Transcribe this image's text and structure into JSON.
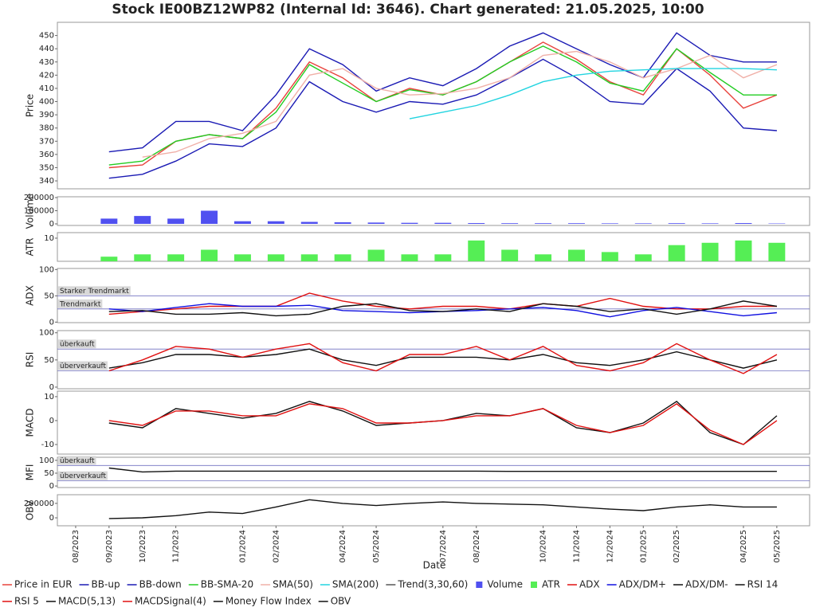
{
  "chart_data": [
    {
      "type": "line",
      "title": "Stock IE00BZ12WP82 (Internal Id: 3646). Chart generated: 21.05.2025, 10:00",
      "ylabel": "Price",
      "ylim": [
        334,
        460
      ],
      "yticks": [
        340,
        350,
        360,
        370,
        380,
        390,
        400,
        410,
        420,
        430,
        440,
        450
      ],
      "series": [
        {
          "name": "Price in EUR",
          "color": "#e8423c",
          "values": [
            null,
            350,
            352,
            370,
            375,
            372,
            395,
            430,
            418,
            400,
            410,
            405,
            415,
            430,
            445,
            432,
            415,
            405,
            440,
            420,
            395,
            405
          ]
        },
        {
          "name": "BB-up",
          "color": "#1a1ab4",
          "values": [
            null,
            362,
            365,
            385,
            385,
            378,
            405,
            440,
            428,
            408,
            418,
            412,
            425,
            442,
            452,
            440,
            428,
            418,
            452,
            435,
            430,
            430
          ]
        },
        {
          "name": "BB-down",
          "color": "#1a1ab4",
          "values": [
            null,
            342,
            345,
            355,
            368,
            366,
            380,
            415,
            400,
            392,
            400,
            398,
            405,
            418,
            432,
            418,
            400,
            398,
            425,
            408,
            380,
            378
          ]
        },
        {
          "name": "BB-SMA-20",
          "color": "#22cc22",
          "values": [
            null,
            352,
            355,
            370,
            375,
            372,
            392,
            428,
            414,
            400,
            409,
            405,
            415,
            430,
            442,
            430,
            414,
            408,
            440,
            422,
            405,
            405
          ]
        },
        {
          "name": "SMA(50)",
          "color": "#f0b0a8",
          "values": [
            null,
            null,
            358,
            362,
            372,
            376,
            385,
            420,
            425,
            410,
            405,
            406,
            410,
            418,
            435,
            438,
            430,
            418,
            425,
            435,
            418,
            428
          ]
        },
        {
          "name": "SMA(200)",
          "color": "#22d4e0",
          "values": [
            null,
            null,
            null,
            null,
            null,
            null,
            null,
            null,
            null,
            null,
            387,
            392,
            397,
            405,
            415,
            420,
            423,
            424,
            425,
            425,
            425,
            424
          ]
        },
        {
          "name": "Trend(3,30,60)",
          "color": "#555555",
          "values": [
            null,
            null,
            null,
            null,
            null,
            null,
            null,
            null,
            null,
            null,
            null,
            null,
            null,
            null,
            null,
            null,
            null,
            null,
            null,
            null,
            null,
            null
          ]
        }
      ]
    },
    {
      "type": "bar",
      "ylabel": "Volume",
      "ylim": [
        -12000,
        206000
      ],
      "yticks": [
        0,
        100000,
        200000
      ],
      "series": [
        {
          "name": "Volume",
          "color": "#5050f0",
          "values": [
            null,
            40000,
            60000,
            40000,
            100000,
            20000,
            20000,
            15000,
            12000,
            10000,
            8000,
            8000,
            6000,
            5000,
            5000,
            5000,
            4000,
            4000,
            5000,
            4000,
            6000,
            3000
          ]
        }
      ]
    },
    {
      "type": "bar",
      "ylabel": "ATR",
      "ylim": [
        0,
        12.4
      ],
      "yticks": [
        10
      ],
      "series": [
        {
          "name": "ATR",
          "color": "#55ee55",
          "values": [
            null,
            2,
            3,
            3,
            5,
            3,
            3,
            3,
            3,
            5,
            3,
            3,
            9,
            5,
            3,
            5,
            4,
            3,
            7,
            8,
            9,
            8
          ]
        }
      ]
    },
    {
      "type": "line",
      "ylabel": "ADX",
      "ylim": [
        -1,
        102
      ],
      "yticks": [
        0,
        50,
        100
      ],
      "annotations": [
        {
          "text": "Starker Trendmarkt",
          "value": 50
        },
        {
          "text": "Trendmarkt",
          "value": 25
        }
      ],
      "series": [
        {
          "name": "ADX",
          "color": "#e01010",
          "values": [
            null,
            15,
            20,
            25,
            30,
            30,
            30,
            55,
            40,
            30,
            25,
            30,
            30,
            25,
            35,
            30,
            45,
            30,
            25,
            25,
            30,
            30
          ]
        },
        {
          "name": "ADX/DM+",
          "color": "#1010e0",
          "values": [
            null,
            25,
            20,
            28,
            35,
            30,
            30,
            32,
            22,
            20,
            18,
            20,
            22,
            25,
            28,
            22,
            10,
            22,
            28,
            20,
            12,
            18
          ]
        },
        {
          "name": "ADX/DM-",
          "color": "#111111",
          "values": [
            null,
            20,
            22,
            15,
            15,
            18,
            12,
            15,
            30,
            35,
            22,
            20,
            25,
            20,
            35,
            30,
            20,
            25,
            15,
            25,
            40,
            30
          ]
        }
      ]
    },
    {
      "type": "line",
      "ylabel": "RSI",
      "ylim": [
        -3,
        104
      ],
      "yticks": [
        0,
        50,
        100
      ],
      "annotations": [
        {
          "text": "überkauft",
          "value": 70
        },
        {
          "text": "überverkauft",
          "value": 30
        }
      ],
      "series": [
        {
          "name": "RSI 14",
          "color": "#111111",
          "values": [
            null,
            35,
            45,
            60,
            60,
            55,
            60,
            70,
            50,
            40,
            55,
            55,
            55,
            50,
            60,
            45,
            40,
            50,
            65,
            50,
            35,
            50
          ]
        },
        {
          "name": "RSI 5",
          "color": "#e01010",
          "values": [
            null,
            30,
            50,
            75,
            70,
            55,
            70,
            80,
            45,
            30,
            60,
            60,
            75,
            50,
            75,
            40,
            30,
            45,
            80,
            50,
            25,
            60
          ]
        }
      ]
    },
    {
      "type": "line",
      "ylabel": "MACD",
      "ylim": [
        -14,
        12.3
      ],
      "yticks": [
        -10,
        0,
        10
      ],
      "series": [
        {
          "name": "MACD(5,13)",
          "color": "#111111",
          "values": [
            null,
            -1,
            -3,
            5,
            3,
            1,
            3,
            8,
            4,
            -2,
            -1,
            0,
            3,
            2,
            5,
            -3,
            -5,
            -1,
            8,
            -5,
            -10,
            2
          ]
        },
        {
          "name": "MACDSignal(4)",
          "color": "#e01010",
          "values": [
            null,
            0,
            -2,
            4,
            4,
            2,
            2,
            7,
            5,
            -1,
            -1,
            0,
            2,
            2,
            5,
            -2,
            -5,
            -2,
            7,
            -4,
            -10,
            0
          ]
        }
      ]
    },
    {
      "type": "line",
      "ylabel": "MFI",
      "ylim": [
        -6,
        112
      ],
      "yticks": [
        0,
        50,
        100
      ],
      "annotations": [
        {
          "text": "überkauft",
          "value": 80
        },
        {
          "text": "überverkauft",
          "value": 20
        }
      ],
      "series": [
        {
          "name": "Money Flow Index",
          "color": "#111111",
          "values": [
            null,
            70,
            55,
            58,
            58,
            58,
            58,
            58,
            58,
            58,
            58,
            58,
            58,
            57,
            57,
            57,
            57,
            57,
            57,
            57,
            57,
            57
          ]
        }
      ]
    },
    {
      "type": "line",
      "ylabel": "OBV",
      "xlabel": "Date",
      "ylim": [
        -110000,
        320000
      ],
      "yticks": [
        0,
        200000
      ],
      "categories": [
        "08/2023",
        "09/2023",
        "10/2023",
        "11/2023",
        null,
        "01/2024",
        "02/2024",
        null,
        "04/2024",
        "05/2024",
        null,
        "07/2024",
        "08/2024",
        null,
        "10/2024",
        "11/2024",
        "12/2024",
        "01/2025",
        "02/2025",
        null,
        "04/2025",
        "05/2025"
      ],
      "series": [
        {
          "name": "OBV",
          "color": "#111111",
          "values": [
            null,
            -10000,
            0,
            30000,
            80000,
            60000,
            150000,
            250000,
            200000,
            170000,
            200000,
            220000,
            200000,
            190000,
            180000,
            150000,
            120000,
            100000,
            150000,
            180000,
            150000,
            150000
          ]
        }
      ]
    }
  ]
}
